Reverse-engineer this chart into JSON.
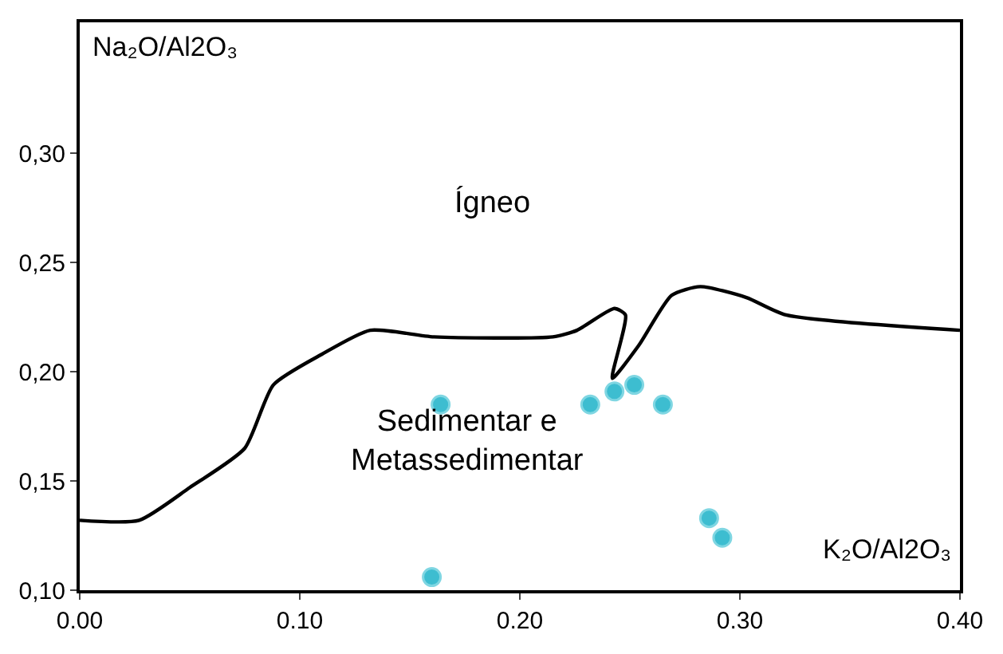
{
  "chart_data": {
    "type": "scatter",
    "xlabel": "K₂O/Al2O₃",
    "ylabel": "Na₂O/Al2O₃",
    "annotations": [
      "Ígneo",
      "Sedimentar e Metassedimentar"
    ],
    "series": [
      {
        "color": "#3dbdd0",
        "marker": "circle",
        "x": [
          0.164,
          0.232,
          0.243,
          0.252,
          0.265,
          0.286,
          0.292,
          0.16
        ],
        "values": [
          0.185,
          0.185,
          0.191,
          0.194,
          0.185,
          0.133,
          0.124,
          0.106
        ]
      },
      {
        "type": "line",
        "color": "#000000",
        "line_style": "solid",
        "x": [
          0,
          0.027,
          0.05,
          0.075,
          0.088,
          0.11,
          0.132,
          0.161,
          0.215,
          0.226,
          0.243,
          0.248,
          0.242,
          0.254,
          0.269,
          0.282,
          0.303,
          0.321,
          0.4
        ],
        "values": [
          0.132,
          0.132,
          0.147,
          0.165,
          0.194,
          0.208,
          0.219,
          0.216,
          0.216,
          0.219,
          0.229,
          0.226,
          0.197,
          0.212,
          0.235,
          0.239,
          0.234,
          0.226,
          0.219
        ]
      }
    ],
    "xlim": [
      0,
      0.4
    ],
    "ylim": [
      0.1,
      0.36
    ],
    "xticks": [
      {
        "value": 0,
        "label": "0.00"
      },
      {
        "value": 0.1,
        "label": "0.10"
      },
      {
        "value": 0.2,
        "label": "0.20"
      },
      {
        "value": 0.3,
        "label": "0.30"
      },
      {
        "value": 0.4,
        "label": "0.40"
      }
    ],
    "yticks": [
      {
        "value": 0.1,
        "label": "0,10"
      },
      {
        "value": 0.15,
        "label": "0,15"
      },
      {
        "value": 0.2,
        "label": "0,20"
      },
      {
        "value": 0.25,
        "label": "0,25"
      },
      {
        "value": 0.3,
        "label": "0,30"
      }
    ]
  }
}
